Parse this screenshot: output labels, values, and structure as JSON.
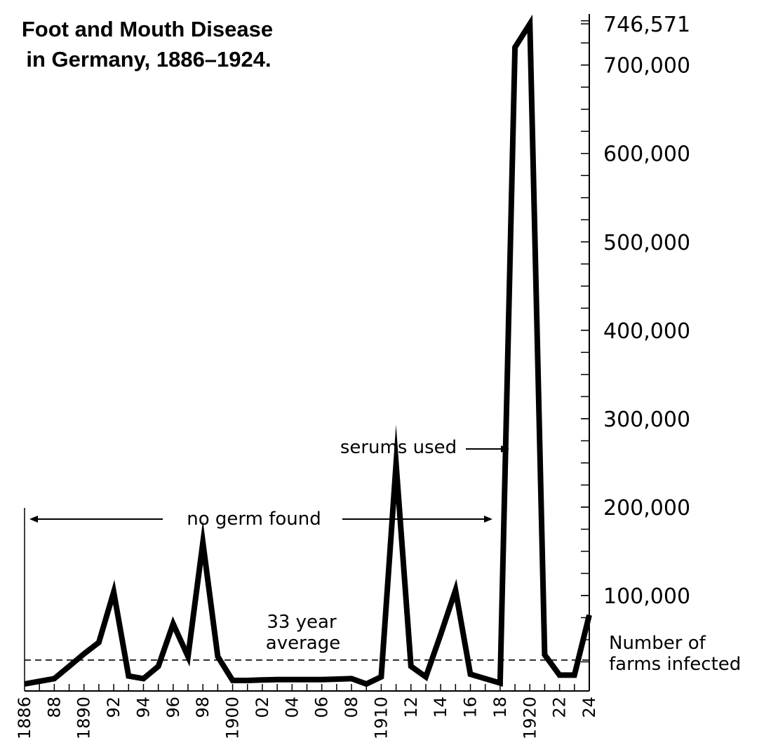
{
  "chart_data": {
    "type": "line",
    "title": [
      "Foot and Mouth Disease",
      "in Germany, 1886–1924."
    ],
    "ylabel": [
      "Number of",
      "farms infected"
    ],
    "ylim": [
      0,
      750000
    ],
    "y_tick_labels": [
      {
        "value": 100000,
        "label": "100,000"
      },
      {
        "value": 200000,
        "label": "200,000"
      },
      {
        "value": 300000,
        "label": "300,000"
      },
      {
        "value": 400000,
        "label": "400,000"
      },
      {
        "value": 500000,
        "label": "500,000"
      },
      {
        "value": 600000,
        "label": "600,000"
      },
      {
        "value": 700000,
        "label": "700,000"
      },
      {
        "value": 746571,
        "label": "746,571"
      }
    ],
    "y_minor_step": 25000,
    "x_tick_labels": [
      {
        "year": 1886,
        "label": "1886"
      },
      {
        "year": 1888,
        "label": "88"
      },
      {
        "year": 1890,
        "label": "1890"
      },
      {
        "year": 1892,
        "label": "92"
      },
      {
        "year": 1894,
        "label": "94"
      },
      {
        "year": 1896,
        "label": "96"
      },
      {
        "year": 1898,
        "label": "98"
      },
      {
        "year": 1900,
        "label": "1900"
      },
      {
        "year": 1902,
        "label": "02"
      },
      {
        "year": 1904,
        "label": "04"
      },
      {
        "year": 1906,
        "label": "06"
      },
      {
        "year": 1908,
        "label": "08"
      },
      {
        "year": 1910,
        "label": "1910"
      },
      {
        "year": 1912,
        "label": "12"
      },
      {
        "year": 1914,
        "label": "14"
      },
      {
        "year": 1916,
        "label": "16"
      },
      {
        "year": 1918,
        "label": "18"
      },
      {
        "year": 1920,
        "label": "1920"
      },
      {
        "year": 1922,
        "label": "22"
      },
      {
        "year": 1924,
        "label": "24"
      }
    ],
    "x": [
      1886,
      1887,
      1888,
      1889,
      1890,
      1891,
      1892,
      1893,
      1894,
      1895,
      1896,
      1897,
      1898,
      1899,
      1900,
      1901,
      1902,
      1903,
      1904,
      1905,
      1906,
      1907,
      1908,
      1909,
      1910,
      1911,
      1912,
      1913,
      1914,
      1915,
      1916,
      1917,
      1918,
      1919,
      1920,
      1921,
      1922,
      1923,
      1924
    ],
    "values": [
      0,
      3000,
      6000,
      20000,
      34000,
      47000,
      104000,
      9000,
      6000,
      20000,
      68000,
      31000,
      160000,
      31000,
      4000,
      4000,
      4500,
      5000,
      5000,
      5000,
      5000,
      5500,
      6000,
      0,
      8000,
      249000,
      20000,
      8000,
      56000,
      106000,
      11000,
      6000,
      1000,
      720000,
      746571,
      33000,
      10000,
      10000,
      78000
    ],
    "average": {
      "value": 27000,
      "label": [
        "33 year",
        "average"
      ]
    },
    "annotations": {
      "no_germ": "no germ found",
      "serums": "serums used"
    },
    "grid": false,
    "legend": "none"
  }
}
